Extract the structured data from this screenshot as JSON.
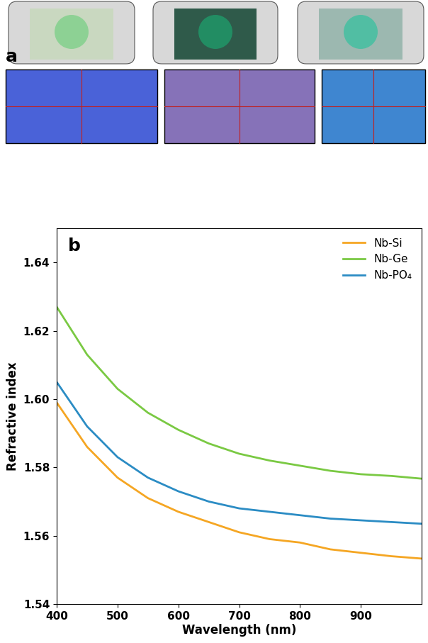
{
  "panel_labels": [
    "a",
    "b"
  ],
  "chart_data": {
    "type": "line",
    "x_label": "Wavelength (nm)",
    "y_label": "Refractive index",
    "x": [
      400,
      450,
      500,
      550,
      600,
      650,
      700,
      750,
      800,
      850,
      900,
      950,
      1000
    ],
    "series": [
      {
        "name": "Nb-Si",
        "color": "#f5a623",
        "values": [
          1.599,
          1.586,
          1.577,
          1.571,
          1.567,
          1.564,
          1.561,
          1.559,
          1.558,
          1.556,
          1.555,
          1.554,
          1.5533
        ]
      },
      {
        "name": "Nb-Ge",
        "color": "#7ac943",
        "values": [
          1.627,
          1.613,
          1.603,
          1.596,
          1.591,
          1.587,
          1.584,
          1.582,
          1.5805,
          1.579,
          1.578,
          1.5775,
          1.5767
        ]
      },
      {
        "name": "Nb-PO₄",
        "color": "#2b8cc4",
        "values": [
          1.605,
          1.592,
          1.583,
          1.577,
          1.573,
          1.57,
          1.568,
          1.567,
          1.566,
          1.565,
          1.5645,
          1.564,
          1.5635
        ]
      }
    ],
    "xlim": [
      400,
      1000
    ],
    "xticks": [
      400,
      500,
      600,
      700,
      800,
      900
    ],
    "ylim": [
      1.54,
      1.65
    ],
    "yticks": [
      1.54,
      1.56,
      1.58,
      {
        "value": 1.6,
        "label": "1.60"
      },
      1.62,
      1.64
    ],
    "legend": "upper right",
    "grid": false
  }
}
